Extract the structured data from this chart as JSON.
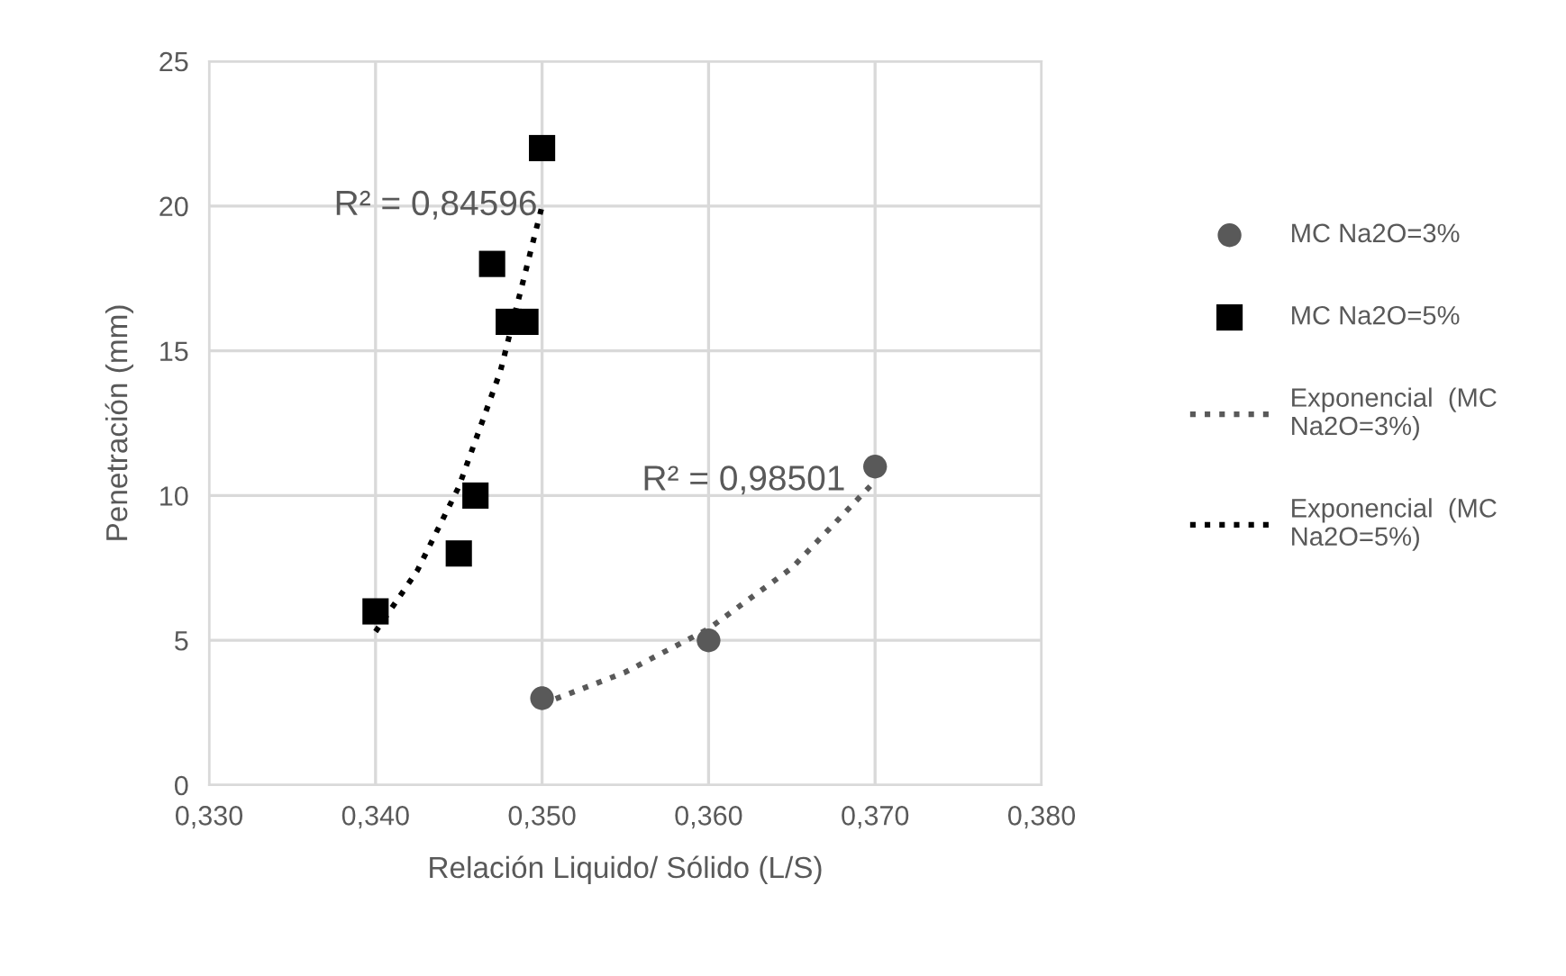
{
  "chart_data": {
    "type": "scatter",
    "xlabel": "Relación Liquido/ Sólido (L/S)",
    "ylabel": "Penetración (mm)",
    "xlim": [
      0.33,
      0.38
    ],
    "ylim": [
      0,
      25
    ],
    "xticks": [
      {
        "value": 0.33,
        "label": "0,330"
      },
      {
        "value": 0.34,
        "label": "0,340"
      },
      {
        "value": 0.35,
        "label": "0,350"
      },
      {
        "value": 0.36,
        "label": "0,360"
      },
      {
        "value": 0.37,
        "label": "0,370"
      },
      {
        "value": 0.38,
        "label": "0,380"
      }
    ],
    "yticks": [
      0,
      5,
      10,
      15,
      20,
      25
    ],
    "grid": true,
    "legend": "right",
    "annotations": [
      "R² = 0,84596",
      "R² = 0,98501"
    ],
    "series": [
      {
        "name": "MC Na2O=3%",
        "marker": "circle",
        "color": "#595959",
        "x": [
          0.35,
          0.36,
          0.37
        ],
        "values": [
          3,
          5,
          11
        ]
      },
      {
        "name": "MC Na2O=5%",
        "marker": "square",
        "color": "#000000",
        "x": [
          0.34,
          0.345,
          0.346,
          0.347,
          0.348,
          0.349,
          0.35
        ],
        "values": [
          6,
          8,
          10,
          18,
          16,
          16,
          22
        ]
      },
      {
        "name": "Exponencial  (MC Na2O=3%)",
        "type": "line",
        "line_style": "dotted",
        "color": "#595959",
        "x": [
          0.35,
          0.355,
          0.36,
          0.365,
          0.37
        ],
        "values": [
          2.8,
          3.9,
          5.4,
          7.5,
          10.5
        ]
      },
      {
        "name": "Exponencial  (MC Na2O=5%)",
        "type": "line",
        "line_style": "dotted",
        "color": "#000000",
        "x": [
          0.34,
          0.3425,
          0.345,
          0.3475,
          0.35
        ],
        "values": [
          5.3,
          7.4,
          10.3,
          14.3,
          20.0
        ]
      }
    ]
  }
}
